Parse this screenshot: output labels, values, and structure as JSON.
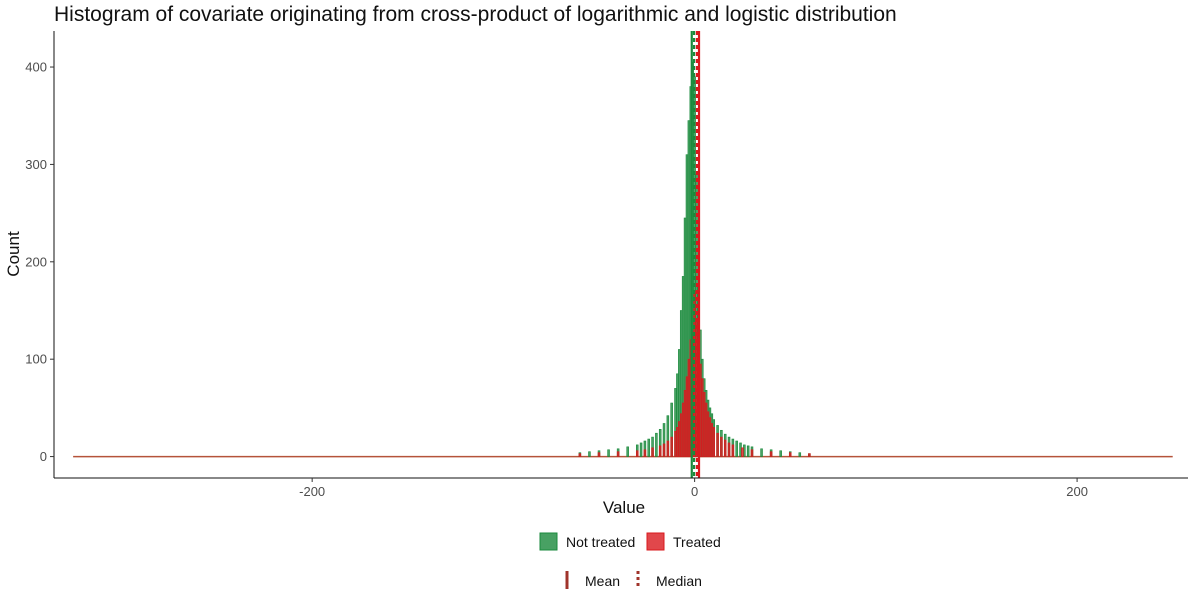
{
  "chart_data": {
    "type": "bar",
    "title": "Histogram of covariate originating from cross-product of logarithmic and logistic distribution",
    "xlabel": "Value",
    "ylabel": "Count",
    "xlim": [
      -335,
      258
    ],
    "ylim": [
      -22,
      437
    ],
    "x_ticks": [
      -200,
      0,
      200
    ],
    "y_ticks": [
      0,
      100,
      200,
      300,
      400
    ],
    "grid": false,
    "bin_width": 1,
    "series": [
      {
        "name": "Not treated",
        "color": "#1a8a3c",
        "fill_opacity": 0.8,
        "x": [
          -60,
          -55,
          -50,
          -45,
          -40,
          -35,
          -30,
          -28,
          -26,
          -24,
          -22,
          -20,
          -18,
          -16,
          -14,
          -12,
          -10,
          -9,
          -8,
          -7,
          -6,
          -5,
          -4,
          -3,
          -2,
          -1,
          0,
          1,
          2,
          3,
          4,
          5,
          6,
          7,
          8,
          9,
          10,
          12,
          14,
          16,
          18,
          20,
          22,
          24,
          26,
          28,
          30,
          35,
          40,
          45,
          50,
          55,
          60
        ],
        "values": [
          4,
          5,
          6,
          7,
          8,
          10,
          12,
          14,
          16,
          18,
          20,
          24,
          28,
          34,
          42,
          55,
          70,
          85,
          110,
          150,
          185,
          245,
          310,
          345,
          380,
          405,
          390,
          290,
          175,
          130,
          100,
          80,
          68,
          58,
          50,
          44,
          38,
          32,
          27,
          23,
          20,
          18,
          16,
          14,
          12,
          11,
          10,
          8,
          7,
          6,
          5,
          4,
          3
        ]
      },
      {
        "name": "Treated",
        "color": "#d9191e",
        "fill_opacity": 0.8,
        "x": [
          -60,
          -50,
          -40,
          -30,
          -26,
          -22,
          -18,
          -16,
          -14,
          -12,
          -10,
          -9,
          -8,
          -7,
          -6,
          -5,
          -4,
          -3,
          -2,
          -1,
          0,
          1,
          2,
          3,
          4,
          5,
          6,
          7,
          8,
          9,
          10,
          12,
          14,
          16,
          18,
          20,
          25,
          30,
          40,
          50,
          60
        ],
        "values": [
          3,
          4,
          5,
          6,
          7,
          9,
          11,
          13,
          16,
          20,
          26,
          30,
          36,
          44,
          55,
          68,
          82,
          100,
          120,
          128,
          170,
          140,
          118,
          95,
          80,
          66,
          55,
          46,
          40,
          34,
          30,
          24,
          20,
          17,
          14,
          12,
          9,
          7,
          5,
          4,
          3
        ]
      }
    ],
    "reference_lines": [
      {
        "series": "Not treated",
        "stat": "Mean",
        "x": -1.5,
        "linetype": "solid"
      },
      {
        "series": "Not treated",
        "stat": "Median",
        "x": -0.3,
        "linetype": "dashed"
      },
      {
        "series": "Treated",
        "stat": "Mean",
        "x": 2.3,
        "linetype": "solid"
      },
      {
        "series": "Treated",
        "stat": "Median",
        "x": 1.2,
        "linetype": "dashed"
      }
    ],
    "legend_fill": {
      "position": "bottom",
      "items": [
        "Not treated",
        "Treated"
      ]
    },
    "legend_lines": {
      "position": "bottom",
      "items": [
        "Mean",
        "Median"
      ],
      "color": "#a0342b"
    }
  }
}
